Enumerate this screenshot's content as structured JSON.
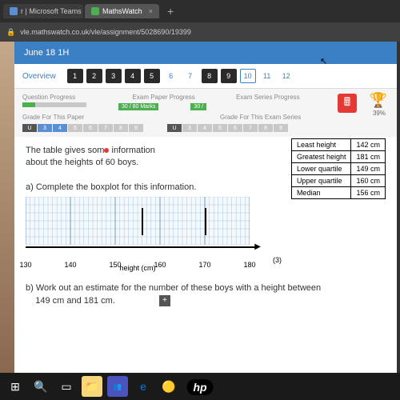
{
  "browser": {
    "tabs": [
      {
        "label": "r | Microsoft Teams"
      },
      {
        "label": "MathsWatch"
      }
    ],
    "url": "vle.mathswatch.co.uk/vle/assignment/5028690/19399"
  },
  "header": {
    "title": "June 18 1H"
  },
  "nav": {
    "overview": "Overview",
    "items": [
      "1",
      "2",
      "3",
      "4",
      "5",
      "6",
      "7",
      "8",
      "9",
      "10",
      "11",
      "12"
    ],
    "filled": [
      0,
      1,
      2,
      3,
      4,
      7,
      8
    ],
    "current": 9
  },
  "progress": {
    "question_label": "Question Progress",
    "paper_label": "Exam Paper Progress",
    "paper_badge": "30 / 80 Marks",
    "series_label": "Exam Series Progress",
    "series_badge": "30 /",
    "grade_paper_label": "Grade For This Paper",
    "grade_series_label": "Grade For This Exam Series",
    "grades_left": [
      "U",
      "3",
      "4",
      "5",
      "6",
      "7",
      "8",
      "9"
    ],
    "grades_right": [
      "U",
      "3",
      "4",
      "5",
      "6",
      "7",
      "8",
      "9"
    ],
    "percent": "39%"
  },
  "question": {
    "intro_a": "The table gives som",
    "intro_b": " information",
    "intro_c": "about the heights of 60 boys.",
    "part_a": "a) Complete the boxplot for this information.",
    "part_b_1": "b) Work out an estimate for the number of these boys with a height between",
    "part_b_2": "149 cm and 181 cm.",
    "axis_label": "height (cm)",
    "marks_a": "(3)",
    "add": "+"
  },
  "stats": {
    "rows": [
      [
        "Least height",
        "142 cm"
      ],
      [
        "Greatest height",
        "181 cm"
      ],
      [
        "Lower quartile",
        "149 cm"
      ],
      [
        "Upper quartile",
        "160 cm"
      ],
      [
        "Median",
        "156 cm"
      ]
    ]
  },
  "axis": {
    "ticks": [
      {
        "v": "130",
        "p": 0
      },
      {
        "v": "140",
        "p": 20
      },
      {
        "v": "150",
        "p": 40
      },
      {
        "v": "160",
        "p": 60
      },
      {
        "v": "170",
        "p": 80
      },
      {
        "v": "180",
        "p": 100
      }
    ]
  },
  "hp": "hp"
}
